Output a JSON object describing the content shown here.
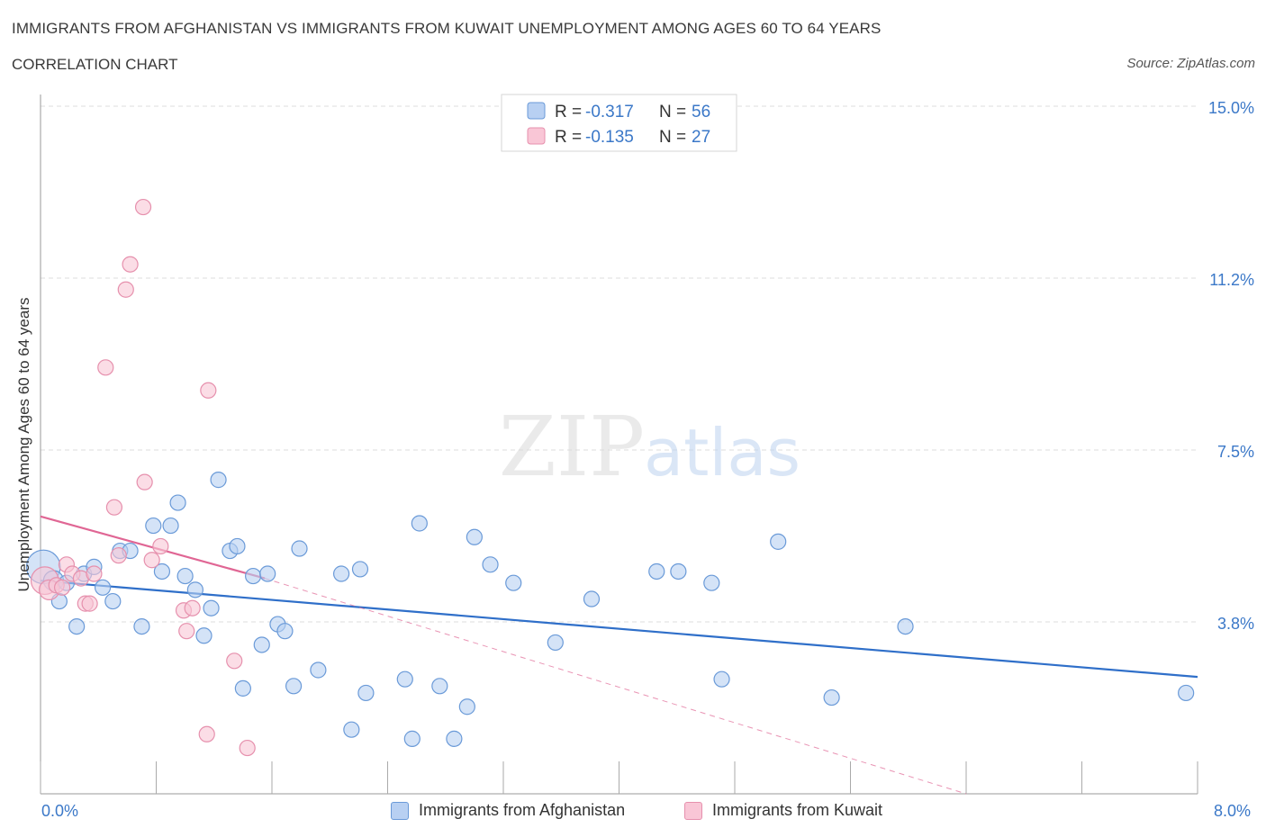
{
  "header": {
    "title": "IMMIGRANTS FROM AFGHANISTAN VS IMMIGRANTS FROM KUWAIT UNEMPLOYMENT AMONG AGES 60 TO 64 YEARS",
    "subtitle": "CORRELATION CHART",
    "source": "Source: ZipAtlas.com"
  },
  "watermark": {
    "zip": "ZIP",
    "atlas": "atlas"
  },
  "colors": {
    "afghanistan_fill": "#b8d0f2",
    "afghanistan_stroke": "#6a9ad8",
    "afghanistan_line": "#2f6fc9",
    "kuwait_fill": "#f9c6d6",
    "kuwait_stroke": "#e690ad",
    "kuwait_line": "#e06694",
    "axis_label": "#3b78c8"
  },
  "legend_top": {
    "rows": [
      {
        "r_label": "R =",
        "r_value": "-0.317",
        "n_label": "N =",
        "n_value": "56"
      },
      {
        "r_label": "R =",
        "r_value": "-0.135",
        "n_label": "N =",
        "n_value": "27"
      }
    ]
  },
  "legend_bottom": {
    "afghanistan": "Immigrants from Afghanistan",
    "kuwait": "Immigrants from Kuwait"
  },
  "axes": {
    "y_label": "Unemployment Among Ages 60 to 64 years",
    "x_min_label": "0.0%",
    "x_max_label": "8.0%",
    "y_tick_labels": [
      "15.0%",
      "11.2%",
      "7.5%",
      "3.8%"
    ]
  },
  "chart_data": {
    "type": "scatter",
    "xlim": [
      0,
      8.0
    ],
    "ylim": [
      0,
      15.0
    ],
    "y_ticks": [
      15.0,
      11.25,
      7.5,
      3.75
    ],
    "grid": "horizontal dashed",
    "legend_placement": "top-center",
    "series": [
      {
        "name": "Immigrants from Afghanistan",
        "r": -0.317,
        "n": 56,
        "trend": {
          "x": [
            0.0,
            8.0
          ],
          "y": [
            4.65,
            2.55
          ]
        },
        "points": [
          [
            0.02,
            4.95,
            2.2
          ],
          [
            0.09,
            4.65,
            1.3
          ],
          [
            0.13,
            4.2,
            1.0
          ],
          [
            0.18,
            4.6,
            1.0
          ],
          [
            0.25,
            3.65,
            1.0
          ],
          [
            0.3,
            4.8,
            1.0
          ],
          [
            0.37,
            4.95,
            1.0
          ],
          [
            0.43,
            4.5,
            1.0
          ],
          [
            0.5,
            4.2,
            1.0
          ],
          [
            0.55,
            5.3,
            1.0
          ],
          [
            0.62,
            5.3,
            1.0
          ],
          [
            0.7,
            3.65,
            1.0
          ],
          [
            0.78,
            5.85,
            1.0
          ],
          [
            0.84,
            4.85,
            1.0
          ],
          [
            0.9,
            5.85,
            1.0
          ],
          [
            0.95,
            6.35,
            1.0
          ],
          [
            1.0,
            4.75,
            1.0
          ],
          [
            1.07,
            4.45,
            1.0
          ],
          [
            1.13,
            3.45,
            1.0
          ],
          [
            1.18,
            4.05,
            1.0
          ],
          [
            1.23,
            6.85,
            1.0
          ],
          [
            1.31,
            5.3,
            1.0
          ],
          [
            1.36,
            5.4,
            1.0
          ],
          [
            1.4,
            2.3,
            1.0
          ],
          [
            1.47,
            4.75,
            1.0
          ],
          [
            1.53,
            3.25,
            1.0
          ],
          [
            1.57,
            4.8,
            1.0
          ],
          [
            1.64,
            3.7,
            1.0
          ],
          [
            1.69,
            3.55,
            1.0
          ],
          [
            1.75,
            2.35,
            1.0
          ],
          [
            1.79,
            5.35,
            1.0
          ],
          [
            1.92,
            2.7,
            1.0
          ],
          [
            2.08,
            4.8,
            1.0
          ],
          [
            2.15,
            1.4,
            1.0
          ],
          [
            2.21,
            4.9,
            1.0
          ],
          [
            2.25,
            2.2,
            1.0
          ],
          [
            2.52,
            2.5,
            1.0
          ],
          [
            2.57,
            1.2,
            1.0
          ],
          [
            2.62,
            5.9,
            1.0
          ],
          [
            2.76,
            2.35,
            1.0
          ],
          [
            2.86,
            1.2,
            1.0
          ],
          [
            2.95,
            1.9,
            1.0
          ],
          [
            3.0,
            5.6,
            1.0
          ],
          [
            3.11,
            5.0,
            1.0
          ],
          [
            3.27,
            4.6,
            1.0
          ],
          [
            3.56,
            3.3,
            1.0
          ],
          [
            3.81,
            4.25,
            1.0
          ],
          [
            4.26,
            4.85,
            1.0
          ],
          [
            4.41,
            4.85,
            1.0
          ],
          [
            4.64,
            4.6,
            1.0
          ],
          [
            4.71,
            2.5,
            1.0
          ],
          [
            5.1,
            5.5,
            1.0
          ],
          [
            5.47,
            2.1,
            1.0
          ],
          [
            5.98,
            3.65,
            1.0
          ],
          [
            7.92,
            2.2,
            1.0
          ]
        ]
      },
      {
        "name": "Immigrants from Kuwait",
        "r": -0.135,
        "n": 27,
        "trend": {
          "x": [
            0.0,
            1.55
          ],
          "y": [
            6.05,
            4.7
          ]
        },
        "trend_extended": {
          "x": [
            1.55,
            6.4
          ],
          "y": [
            4.7,
            0.0
          ]
        },
        "points": [
          [
            0.03,
            4.65,
            1.8
          ],
          [
            0.06,
            4.45,
            1.3
          ],
          [
            0.11,
            4.55,
            1.0
          ],
          [
            0.15,
            4.5,
            1.0
          ],
          [
            0.18,
            5.0,
            1.0
          ],
          [
            0.22,
            4.8,
            1.0
          ],
          [
            0.28,
            4.7,
            1.0
          ],
          [
            0.31,
            4.15,
            1.0
          ],
          [
            0.34,
            4.15,
            1.0
          ],
          [
            0.37,
            4.8,
            1.0
          ],
          [
            0.45,
            9.3,
            1.0
          ],
          [
            0.51,
            6.25,
            1.0
          ],
          [
            0.54,
            5.2,
            1.0
          ],
          [
            0.59,
            11.0,
            1.0
          ],
          [
            0.62,
            11.55,
            1.0
          ],
          [
            0.71,
            12.8,
            1.0
          ],
          [
            0.72,
            6.8,
            1.0
          ],
          [
            0.77,
            5.1,
            1.0
          ],
          [
            0.83,
            5.4,
            1.0
          ],
          [
            0.99,
            4.0,
            1.0
          ],
          [
            1.01,
            3.55,
            1.0
          ],
          [
            1.05,
            4.05,
            1.0
          ],
          [
            1.15,
            1.3,
            1.0
          ],
          [
            1.16,
            8.8,
            1.0
          ],
          [
            1.34,
            2.9,
            1.0
          ],
          [
            1.43,
            1.0,
            1.0
          ]
        ]
      }
    ]
  }
}
